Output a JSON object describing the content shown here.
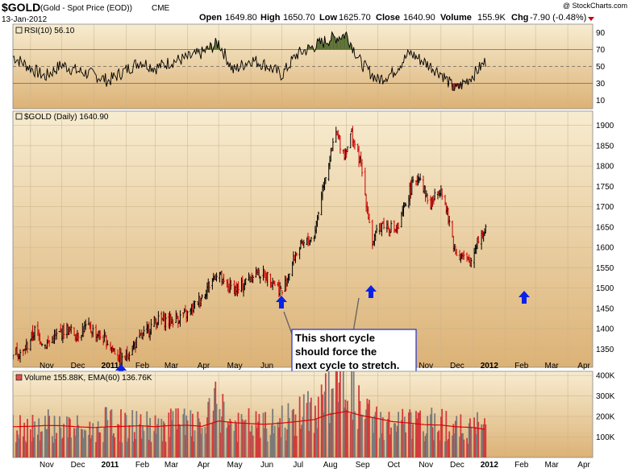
{
  "header": {
    "symbol": "$GOLD",
    "description": "(Gold - Spot Price (EOD))",
    "exchange": "CME",
    "date": "13-Jan-2012",
    "open_label": "Open",
    "open": "1649.80",
    "high_label": "High",
    "high": "1650.70",
    "low_label": "Low",
    "low": "1625.70",
    "close_label": "Close",
    "close": "1640.90",
    "volume_label": "Volume",
    "volume": "155.9K",
    "chg_label": "Chg",
    "chg": "-7.90 (-0.48%)",
    "watermark": "@ StockCharts.com"
  },
  "colors": {
    "panel_top": "#f7ecd0",
    "panel_bottom": "#dcb276",
    "up_bar": "#000000",
    "down_bar": "#cc0000",
    "ema": "#dd0000",
    "rsi_fill": "#556b2f",
    "rsi_fill_low": "#8b2020",
    "arrow": "#0a22e6",
    "annotation_text": "#1f2fcf",
    "annotation_border": "#1f2fcf"
  },
  "annotation": {
    "text_lines": [
      "This short cycle",
      "should force the",
      "next cycle to stretch."
    ]
  },
  "chart_data": [
    {
      "type": "line",
      "panel": "RSI",
      "legend": "RSI(10) 56.10",
      "ylim": [
        0,
        100
      ],
      "y_ticks": [
        90,
        70,
        50,
        30,
        10
      ],
      "reference_lines": [
        70,
        50,
        30
      ],
      "dates": [
        "2010-10-15",
        "2010-11-01",
        "2010-11-15",
        "2010-12-01",
        "2010-12-15",
        "2011-01-01",
        "2011-01-15",
        "2011-02-01",
        "2011-02-15",
        "2011-03-01",
        "2011-03-15",
        "2011-04-01",
        "2011-04-15",
        "2011-05-01",
        "2011-05-15",
        "2011-06-01",
        "2011-06-15",
        "2011-07-01",
        "2011-07-15",
        "2011-08-01",
        "2011-08-15",
        "2011-09-01",
        "2011-09-15",
        "2011-10-01",
        "2011-10-15",
        "2011-11-01",
        "2011-11-15",
        "2011-12-01",
        "2011-12-15",
        "2012-01-01",
        "2012-01-13"
      ],
      "values": [
        62,
        48,
        38,
        52,
        45,
        40,
        33,
        46,
        56,
        48,
        55,
        60,
        66,
        78,
        45,
        58,
        52,
        40,
        64,
        74,
        82,
        88,
        54,
        34,
        42,
        66,
        55,
        42,
        22,
        40,
        56
      ]
    },
    {
      "type": "candlestick",
      "panel": "Price",
      "legend": "$GOLD (Daily) 1640.90",
      "ylim": [
        1305,
        1935
      ],
      "y_ticks": [
        1900,
        1850,
        1800,
        1750,
        1700,
        1650,
        1600,
        1550,
        1500,
        1450,
        1400,
        1350
      ],
      "x_tick_labels": [
        "Nov",
        "Dec",
        "2011",
        "Feb",
        "Mar",
        "Apr",
        "May",
        "Jun",
        "Jul",
        "Aug",
        "Sep",
        "Oct",
        "Nov",
        "Dec",
        "2012",
        "Feb",
        "Mar",
        "Apr"
      ],
      "x_tick_dates": [
        "2010-11-01",
        "2010-12-01",
        "2011-01-01",
        "2011-02-01",
        "2011-03-01",
        "2011-04-01",
        "2011-05-01",
        "2011-06-01",
        "2011-07-01",
        "2011-08-01",
        "2011-09-01",
        "2011-10-01",
        "2011-11-01",
        "2011-12-01",
        "2012-01-01",
        "2012-02-01",
        "2012-03-01",
        "2012-04-01"
      ],
      "dates": [
        "2010-10-15",
        "2010-10-25",
        "2010-11-05",
        "2010-11-15",
        "2010-11-25",
        "2010-12-05",
        "2010-12-15",
        "2010-12-25",
        "2011-01-05",
        "2011-01-15",
        "2011-01-28",
        "2011-02-10",
        "2011-02-20",
        "2011-03-01",
        "2011-03-15",
        "2011-04-01",
        "2011-04-15",
        "2011-05-01",
        "2011-05-05",
        "2011-05-20",
        "2011-06-05",
        "2011-06-20",
        "2011-07-01",
        "2011-07-15",
        "2011-08-01",
        "2011-08-10",
        "2011-08-22",
        "2011-08-30",
        "2011-09-06",
        "2011-09-15",
        "2011-09-26",
        "2011-10-05",
        "2011-10-20",
        "2011-11-01",
        "2011-11-10",
        "2011-11-20",
        "2011-12-01",
        "2011-12-15",
        "2011-12-29",
        "2012-01-05",
        "2012-01-13"
      ],
      "closes": [
        1345,
        1340,
        1395,
        1360,
        1380,
        1400,
        1385,
        1405,
        1385,
        1365,
        1320,
        1365,
        1390,
        1420,
        1420,
        1435,
        1480,
        1545,
        1510,
        1495,
        1540,
        1525,
        1490,
        1590,
        1630,
        1760,
        1880,
        1830,
        1880,
        1800,
        1610,
        1660,
        1640,
        1740,
        1780,
        1700,
        1750,
        1590,
        1560,
        1620,
        1640
      ],
      "down_days": [
        false,
        true,
        false,
        true,
        false,
        false,
        true,
        false,
        true,
        true,
        true,
        false,
        false,
        false,
        false,
        false,
        false,
        false,
        true,
        true,
        false,
        true,
        true,
        false,
        false,
        false,
        false,
        true,
        false,
        true,
        true,
        false,
        true,
        false,
        false,
        true,
        false,
        true,
        true,
        false,
        true
      ]
    },
    {
      "type": "bar",
      "panel": "Volume",
      "legend": "Volume 155.88K, EMA(60) 136.76K",
      "ylim": [
        0,
        420000
      ],
      "y_tick_values": [
        400000,
        300000,
        200000,
        100000
      ],
      "y_ticks": [
        "400K",
        "300K",
        "200K",
        "100K"
      ],
      "dates": [
        "2010-10-15",
        "2010-11-01",
        "2010-11-15",
        "2010-12-01",
        "2010-12-15",
        "2011-01-01",
        "2011-01-15",
        "2011-02-01",
        "2011-02-15",
        "2011-03-01",
        "2011-03-15",
        "2011-04-01",
        "2011-04-15",
        "2011-05-01",
        "2011-05-15",
        "2011-06-01",
        "2011-06-15",
        "2011-07-01",
        "2011-07-15",
        "2011-08-01",
        "2011-08-15",
        "2011-09-01",
        "2011-09-15",
        "2011-10-01",
        "2011-10-15",
        "2011-11-01",
        "2011-11-15",
        "2011-12-01",
        "2011-12-15",
        "2012-01-01",
        "2012-01-13"
      ],
      "values": [
        150000,
        160000,
        170000,
        150000,
        140000,
        130000,
        175000,
        150000,
        165000,
        140000,
        180000,
        160000,
        145000,
        270000,
        150000,
        165000,
        150000,
        175000,
        200000,
        230000,
        330000,
        390000,
        220000,
        180000,
        160000,
        170000,
        150000,
        180000,
        140000,
        150000,
        156000
      ],
      "ema": [
        150000,
        152000,
        156000,
        155000,
        150000,
        146000,
        150000,
        152000,
        155000,
        150000,
        156000,
        157000,
        152000,
        178000,
        170000,
        165000,
        162000,
        168000,
        175000,
        185000,
        210000,
        225000,
        205000,
        190000,
        175000,
        168000,
        160000,
        158000,
        150000,
        146000,
        137000
      ]
    }
  ]
}
